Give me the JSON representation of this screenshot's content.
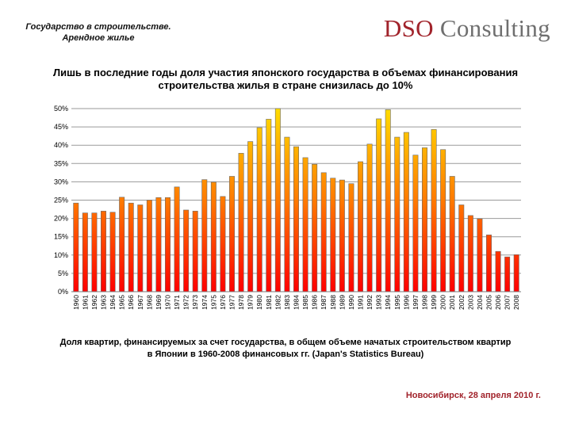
{
  "header": {
    "section_title_line1": "Государство в строительстве.",
    "section_title_line2": "Арендное жилье"
  },
  "logo": {
    "part1": "DSO",
    "part2": "Consulting"
  },
  "chart_data": {
    "type": "bar",
    "title": "Лишь в последние годы доля участия японского государства в объемах финансирования строительства жилья в стране снизилась до 10%",
    "categories": [
      "1960",
      "1961",
      "1962",
      "1963",
      "1964",
      "1965",
      "1966",
      "1967",
      "1968",
      "1969",
      "1970",
      "1971",
      "1972",
      "1973",
      "1974",
      "1975",
      "1976",
      "1977",
      "1978",
      "1979",
      "1980",
      "1981",
      "1982",
      "1983",
      "1984",
      "1985",
      "1986",
      "1987",
      "1988",
      "1989",
      "1990",
      "1991",
      "1992",
      "1993",
      "1994",
      "1995",
      "1996",
      "1997",
      "1998",
      "1999",
      "2000",
      "2001",
      "2002",
      "2003",
      "2004",
      "2005",
      "2006",
      "2007",
      "2008"
    ],
    "values": [
      24.2,
      21.5,
      21.5,
      22,
      21.7,
      25.8,
      24.2,
      23.7,
      25,
      25.7,
      25.7,
      28.6,
      22.3,
      22,
      30.6,
      29.9,
      26,
      31.5,
      37.8,
      41,
      44.8,
      47.1,
      50,
      42.2,
      39.6,
      36.6,
      34.8,
      32.5,
      31,
      30.5,
      29.5,
      35.5,
      40.3,
      47.2,
      49.7,
      42.2,
      43.5,
      37.3,
      39.3,
      44.3,
      38.8,
      31.5,
      23.7,
      20.8,
      19.9,
      15.5,
      11,
      9.5,
      10.1
    ],
    "y_ticks": [
      "0%",
      "5%",
      "10%",
      "15%",
      "20%",
      "25%",
      "30%",
      "35%",
      "40%",
      "45%",
      "50%"
    ],
    "ylim": [
      0,
      50
    ],
    "grid": true,
    "legend": "none",
    "colors": {
      "bar_top": "#ffdc00",
      "bar_mid": "#ff7a00",
      "bar_bottom": "#ff0000",
      "bar_stroke": "#6b6b6b",
      "grid": "#9a9a9a"
    }
  },
  "caption": {
    "line1": "Доля квартир, финансируемых за счет государства, в общем объеме начатых строительством квартир",
    "line2": "в Японии в 1960-2008 финансовых гг. (Japan's Statistics Bureau)"
  },
  "footer": {
    "date": "Новосибирск, 28 апреля 2010 г."
  }
}
